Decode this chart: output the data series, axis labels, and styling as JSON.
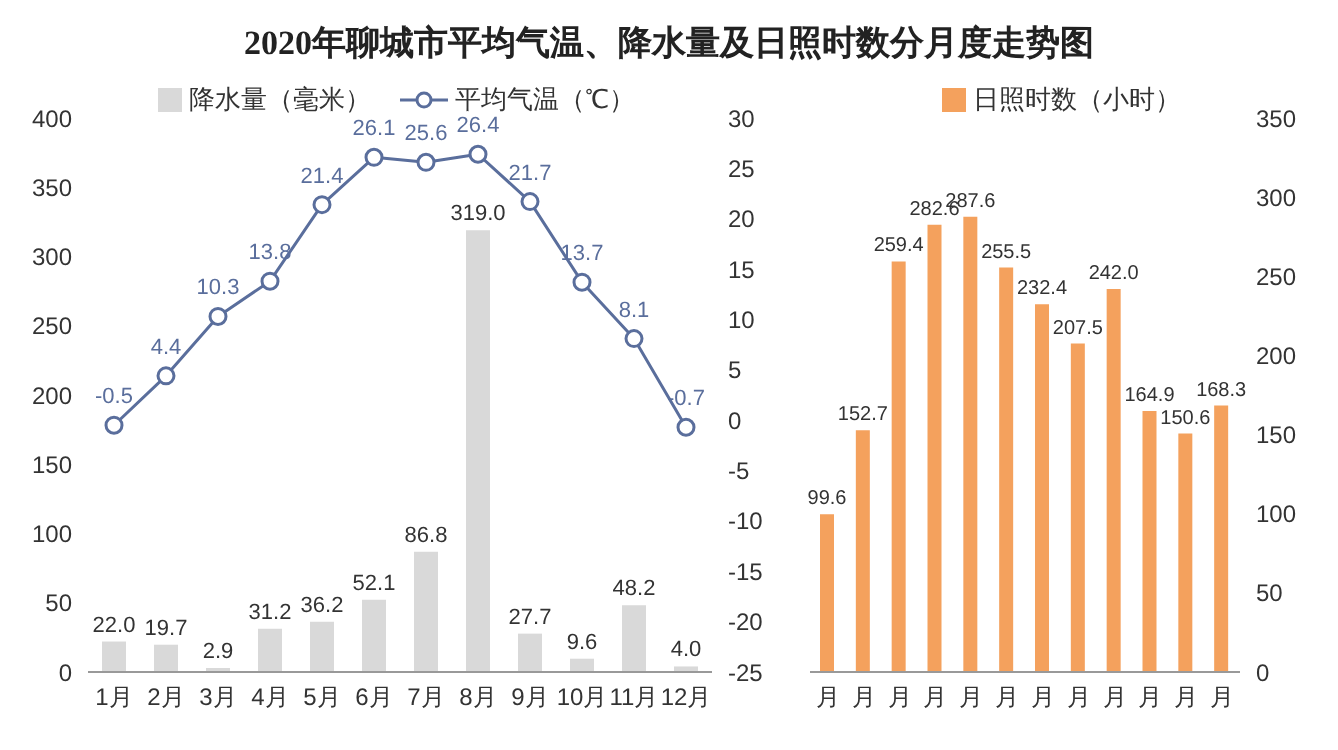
{
  "chart_data": [
    {
      "type": "bar",
      "title": "2020年聊城市平均气温、降水量及日照时数分月度走势图",
      "categories": [
        "1月",
        "2月",
        "3月",
        "4月",
        "5月",
        "6月",
        "7月",
        "8月",
        "9月",
        "10月",
        "11月",
        "12月"
      ],
      "series": [
        {
          "name": "降水量（毫米）",
          "color": "#d9d9d9",
          "values": [
            22.0,
            19.7,
            2.9,
            31.2,
            36.2,
            52.1,
            86.8,
            319.0,
            27.7,
            9.6,
            48.2,
            4.0
          ],
          "value_labels": [
            "22.0",
            "19.7",
            "2.9",
            "31.2",
            "36.2",
            "52.1",
            "86.8",
            "319.0",
            "27.7",
            "9.6",
            "48.2",
            "4.0"
          ]
        },
        {
          "name": "平均气温（℃）",
          "type": "line",
          "axis": "y2",
          "color": "#5a6e9c",
          "values": [
            -0.5,
            4.4,
            10.3,
            13.8,
            21.4,
            26.1,
            25.6,
            26.4,
            21.7,
            13.7,
            8.1,
            -0.7
          ],
          "value_labels": [
            "-0.5",
            "4.4",
            "10.3",
            "13.8",
            "21.4",
            "26.1",
            "25.6",
            "26.4",
            "21.7",
            "13.7",
            "8.1",
            "-0.7"
          ]
        }
      ],
      "ylim": [
        0,
        400
      ],
      "yticks": [
        0,
        50,
        100,
        150,
        200,
        250,
        300,
        350,
        400
      ],
      "y2lim": [
        -25,
        30
      ],
      "y2ticks": [
        -25,
        -20,
        -15,
        -10,
        -5,
        0,
        5,
        10,
        15,
        20,
        25,
        30
      ],
      "marker": "circle",
      "legend": "top"
    },
    {
      "type": "bar",
      "categories": [
        "月",
        "月",
        "月",
        "月",
        "月",
        "月",
        "月",
        "月",
        "月",
        "月",
        "月",
        "月"
      ],
      "series": [
        {
          "name": "日照时数（小时）",
          "color": "#f4a15d",
          "values": [
            99.6,
            152.7,
            259.4,
            282.6,
            287.6,
            255.5,
            232.4,
            207.5,
            242.0,
            164.9,
            150.6,
            168.3
          ],
          "value_labels": [
            "99.6",
            "152.7",
            "259.4",
            "282.6",
            "287.6",
            "255.5",
            "232.4",
            "207.5",
            "242.0",
            "164.9",
            "150.6",
            "168.3"
          ]
        }
      ],
      "ylim": [
        0,
        350
      ],
      "yticks": [
        0,
        50,
        100,
        150,
        200,
        250,
        300,
        350
      ],
      "legend": "top"
    }
  ]
}
